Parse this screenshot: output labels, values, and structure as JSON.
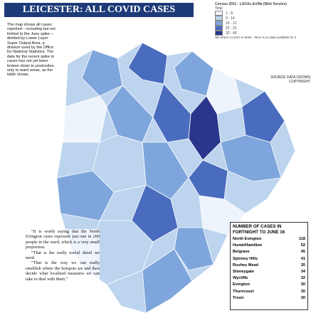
{
  "title": "LEICESTER: ALL COVID CASES",
  "description": "The map shows all cases reported – including but not limited to the June spike – divided by Lower Layer Super Output Area, a division used by the Office for National Statistics. The data for the recent spike in cases has not yet been broken down to postcodes, only to ward areas, as the table shows.",
  "legend": {
    "title": "Census 2011 - LSOAs EnWa (Web Service)",
    "subtitle": "Total",
    "items": [
      {
        "label": "1 - 8",
        "color": "#eef4fb"
      },
      {
        "label": "9 - 14",
        "color": "#bcd4ee"
      },
      {
        "label": "15 - 21",
        "color": "#7fa6dc"
      },
      {
        "label": "22 - 31",
        "color": "#4a6cbf"
      },
      {
        "label": "32 - 40",
        "color": "#29368c"
      }
    ],
    "note": "NB where a LSOA is white - there is no data available for it"
  },
  "copyright": "SOURCE DATA CROWN COPYRIGHT",
  "quote": [
    "“It is worth saying that the North Evington cases represent just one in 200 people in the ward, which is a very small proportion.",
    "“That is the really useful detail we need.",
    "“That is the way we can really establish where the hotspots are and then decide what localised measures we can take to deal with them.”"
  ],
  "table": {
    "title": "NUMBER OF CASES IN FORTNIGHT TO JUNE 16",
    "rows": [
      [
        "North Evington",
        "118"
      ],
      [
        "Humb/Hamilton",
        "52"
      ],
      [
        "Belgrave",
        "45"
      ],
      [
        "Spinney Hills",
        "41"
      ],
      [
        "Rushey Mead",
        "35"
      ],
      [
        "Stoneygate",
        "34"
      ],
      [
        "Wycliffe",
        "32"
      ],
      [
        "Evington",
        "30"
      ],
      [
        "Thurncourt",
        "30"
      ],
      [
        "Troon",
        "30"
      ]
    ]
  }
}
